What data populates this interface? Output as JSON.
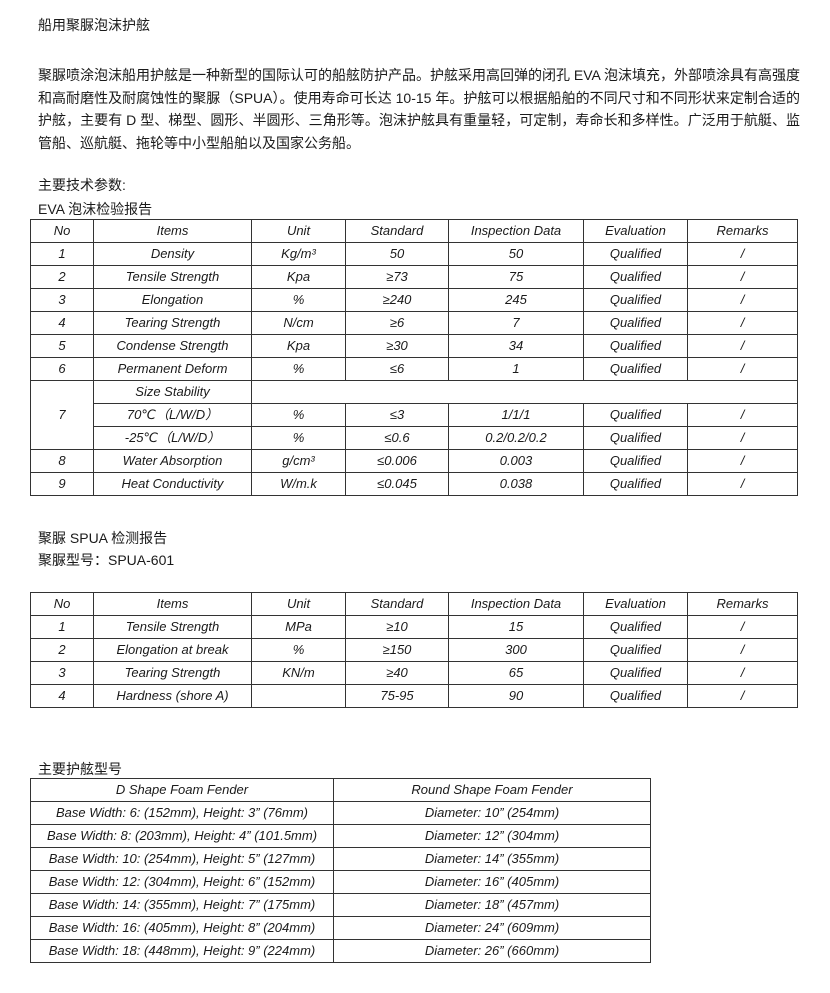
{
  "title": "船用聚脲泡沫护舷",
  "paragraph": "聚脲喷涂泡沫船用护舷是一种新型的国际认可的船舷防护产品。护舷采用高回弹的闭孔 EVA 泡沫填充，外部喷涂具有高强度和高耐磨性及耐腐蚀性的聚脲（SPUA）。使用寿命可长达 10-15 年。护舷可以根据船舶的不同尺寸和不同形状来定制合适的护舷，主要有 D 型、梯型、圆形、半圆形、三角形等。泡沫护舷具有重量轻，可定制，寿命长和多样性。广泛用于航艇、监管船、巡航艇、拖轮等中小型船舶以及国家公务船。",
  "section_params": "主要技术参数:",
  "eva_heading": "EVA  泡沫检验报告",
  "columns": [
    "No",
    "Items",
    "Unit",
    "Standard",
    "Inspection Data",
    "Evaluation",
    "Remarks"
  ],
  "eva_rows": [
    [
      "1",
      "Density",
      "Kg/m³",
      "50",
      "50",
      "Qualified",
      "/"
    ],
    [
      "2",
      "Tensile Strength",
      "Kpa",
      "≥73",
      "75",
      "Qualified",
      "/"
    ],
    [
      "3",
      "Elongation",
      "%",
      "≥240",
      "245",
      "Qualified",
      "/"
    ],
    [
      "4",
      "Tearing Strength",
      "N/cm",
      "≥6",
      "7",
      "Qualified",
      "/"
    ],
    [
      "5",
      "Condense Strength",
      "Kpa",
      "≥30",
      "34",
      "Qualified",
      "/"
    ],
    [
      "6",
      "Permanent Deform",
      "%",
      "≤6",
      "1",
      "Qualified",
      "/"
    ]
  ],
  "size_stability": {
    "no": "7",
    "label": "Size Stability",
    "rows": [
      [
        "70℃（L/W/D）",
        "%",
        "≤3",
        "1/1/1",
        "Qualified",
        "/"
      ],
      [
        "-25℃（L/W/D）",
        "%",
        "≤0.6",
        "0.2/0.2/0.2",
        "Qualified",
        "/"
      ]
    ]
  },
  "eva_rows_after": [
    [
      "8",
      "Water Absorption",
      "g/cm³",
      "≤0.006",
      "0.003",
      "Qualified",
      "/"
    ],
    [
      "9",
      "Heat Conductivity",
      "W/m.k",
      "≤0.045",
      "0.038",
      "Qualified",
      "/"
    ]
  ],
  "spua_heading": "聚脲 SPUA 检测报告",
  "spua_model": "聚脲型号：SPUA-601",
  "spua_rows": [
    [
      "1",
      "Tensile Strength",
      "MPa",
      "≥10",
      "15",
      "Qualified",
      "/"
    ],
    [
      "2",
      "Elongation at break",
      "%",
      "≥150",
      "300",
      "Qualified",
      "/"
    ],
    [
      "3",
      "Tearing Strength",
      "KN/m",
      "≥40",
      "65",
      "Qualified",
      "/"
    ],
    [
      "4",
      "Hardness (shore A)",
      "",
      "75-95",
      "90",
      "Qualified",
      "/"
    ]
  ],
  "models_heading": "主要护舷型号",
  "model_columns": [
    "D Shape Foam Fender",
    "Round Shape Foam Fender"
  ],
  "model_rows": [
    [
      "Base Width: 6: (152mm), Height: 3” (76mm)",
      "Diameter: 10” (254mm)"
    ],
    [
      "Base Width: 8: (203mm), Height: 4” (101.5mm)",
      "Diameter: 12” (304mm)"
    ],
    [
      "Base Width: 10: (254mm), Height: 5” (127mm)",
      "Diameter: 14” (355mm)"
    ],
    [
      "Base Width: 12: (304mm), Height: 6” (152mm)",
      "Diameter: 16” (405mm)"
    ],
    [
      "Base Width: 14: (355mm), Height: 7” (175mm)",
      "Diameter: 18” (457mm)"
    ],
    [
      "Base Width: 16: (405mm), Height: 8” (204mm)",
      "Diameter: 24” (609mm)"
    ],
    [
      "Base Width: 18: (448mm), Height: 9” (224mm)",
      "Diameter: 26” (660mm)"
    ]
  ]
}
